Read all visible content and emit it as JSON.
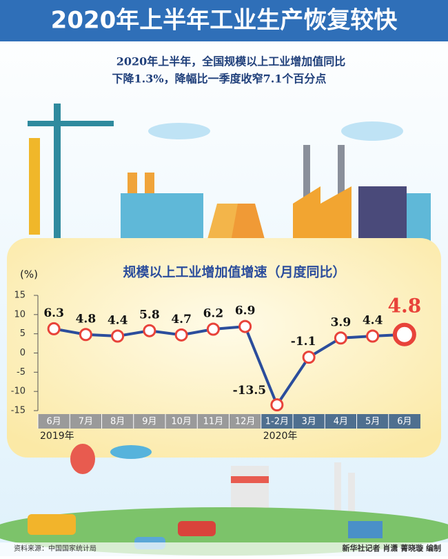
{
  "header": {
    "title": "2020年上半年工业生产恢复较快",
    "subtitle": [
      "2020年上半年，全国规模以上工业增加值同比",
      "下降1.3%，降幅比一季度收窄7.1个百分点"
    ]
  },
  "chart_data": {
    "type": "line",
    "title": "规模以上工业增加值增速（月度同比）",
    "y_label": "(%)",
    "categories": [
      "6月",
      "7月",
      "8月",
      "9月",
      "10月",
      "11月",
      "12月",
      "1-2月",
      "3月",
      "4月",
      "5月",
      "6月"
    ],
    "year_labels": [
      "2019年",
      "2020年"
    ],
    "values": [
      6.3,
      4.8,
      4.4,
      5.8,
      4.7,
      6.2,
      6.9,
      -13.5,
      -1.1,
      3.9,
      4.4,
      4.8
    ],
    "color": "#2b4d9c",
    "marker_color": "#e8433a",
    "ylim": [
      -15,
      15
    ],
    "yticks": [
      -15,
      -10,
      -5,
      0,
      5,
      10,
      15
    ]
  },
  "footer": {
    "source": "资料来源：中国国家统计局",
    "credit": "新华社记者 肖潇 菁晓璇 编制"
  }
}
